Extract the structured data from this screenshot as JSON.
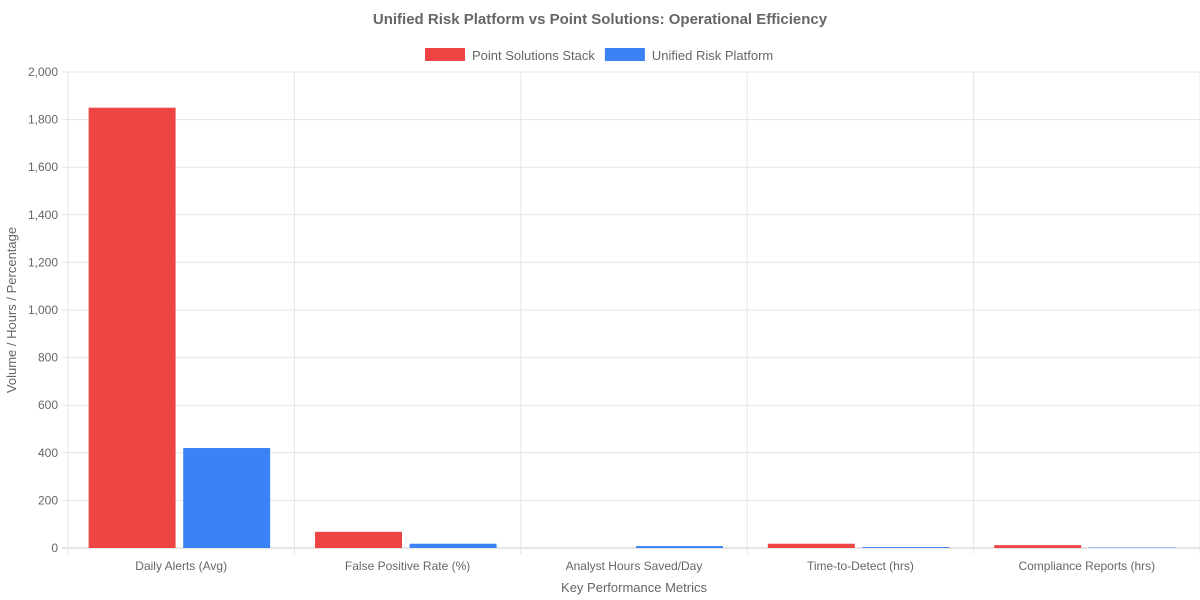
{
  "chart_data": {
    "type": "bar",
    "title": "Unified Risk Platform vs Point Solutions: Operational Efficiency",
    "xlabel": "Key Performance Metrics",
    "ylabel": "Volume / Hours / Percentage",
    "ylim": [
      0,
      2000
    ],
    "yticks": [
      "0",
      "200",
      "400",
      "600",
      "800",
      "1,000",
      "1,200",
      "1,400",
      "1,600",
      "1,800",
      "2,000"
    ],
    "grid": true,
    "legend_position": "top",
    "categories": [
      "Daily Alerts (Avg)",
      "False Positive Rate (%)",
      "Analyst Hours Saved/Day",
      "Time-to-Detect (hrs)",
      "Compliance Reports (hrs)"
    ],
    "series": [
      {
        "name": "Point Solutions Stack",
        "color": "#ef4444",
        "values": [
          1850,
          68,
          0,
          18,
          12
        ]
      },
      {
        "name": "Unified Risk Platform",
        "color": "#3b82f6",
        "values": [
          420,
          18,
          8,
          4,
          2
        ]
      }
    ]
  }
}
